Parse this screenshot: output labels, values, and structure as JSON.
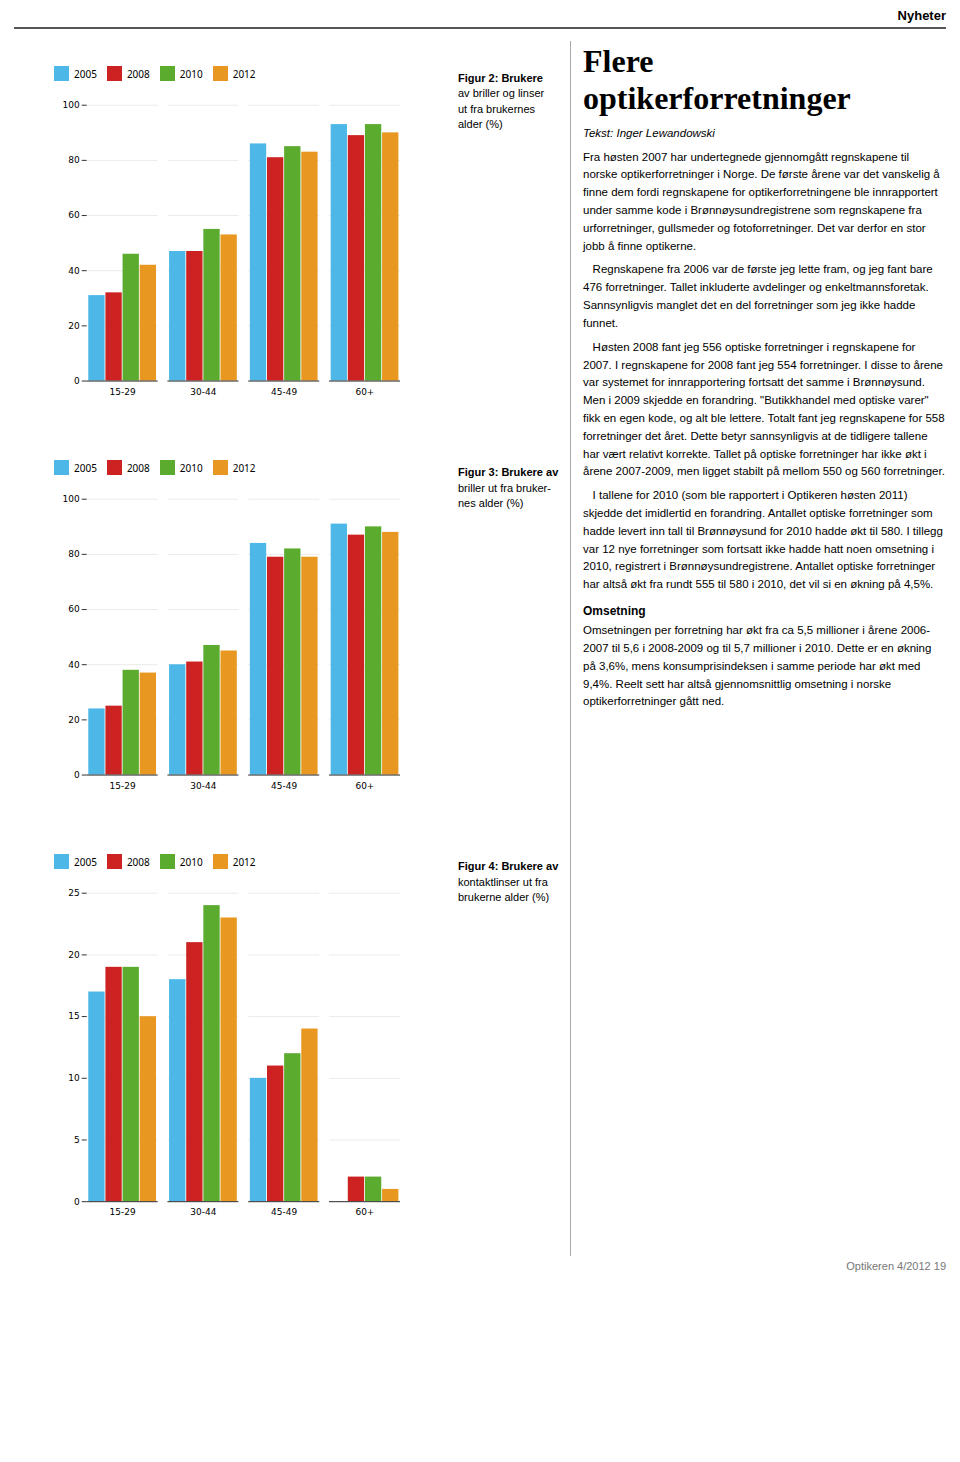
{
  "page": {
    "header": "Nyheter",
    "title": [
      "Flere",
      "optikerforretninger"
    ],
    "author": "Tekst: Inger Lewandowski",
    "body": [
      {
        "paragraph": "Fra høsten 2007 har undertegnede gjennomgått regnskapene til norske optikerforretninger i Norge. De første årene var det vanskelig å finne dem fordi regnskapene for optikerforretningene ble innrapportert under samme kode i Brønnøysundregistrene som regnskapene fra urforretninger, gullsmeder og fotoforretninger. Det var derfor en stor jobb å finne optikerne."
      },
      {
        "paragraph": "   Regnskapene fra 2006 var de første jeg lette fram, og jeg fant bare 476 forretninger. Tallet inkluderte avdelinger og enkeltmannsforetak. Sannsynligvis manglet det en del forretninger som jeg ikke hadde funnet."
      },
      {
        "paragraph": "   Høsten 2008 fant jeg 556 optiske forretninger i regnskapene for 2007. I regnskapene for 2008 fant jeg 554 forretninger. I disse to årene var systemet for innrapportering fortsatt det samme i Brønnøysund. Men i 2009 skjedde en forandring. \"Butikkhandel med optiske varer\" fikk en egen kode, og alt ble lettere. Totalt fant jeg regnskapene for 558 forretninger det året. Dette betyr sannsynligvis at de tidligere tallene har vært relativt korrekte. Tallet på optiske forretninger har ikke økt i årene 2007-2009, men ligget stabilt på mellom 550 og 560 forretninger."
      },
      {
        "paragraph": "   I tallene for 2010 (som ble rapportert i Optikeren høsten 2011) skjedde det imidlertid en forandring. Antallet optiske forretninger som hadde levert inn tall til Brønnøysund for 2010 hadde økt til 580. I tillegg var 12 nye forretninger som fortsatt ikke hadde hatt noen omsetning i 2010, registrert i Brønnøysundregistrene. Antallet optiske forretninger har altså økt fra rundt 555 til 580 i 2010, det vil si en økning på 4,5%."
      },
      {
        "heading": "Omsetning"
      },
      {
        "paragraph": "Omsetningen per forretning har økt fra ca 5,5 millioner i årene 2006-2007 til 5,6 i 2008-2009 og til 5,7 millioner i 2010. Dette er en økning på 3,6%, mens konsumprisindeksen i samme periode har økt med 9,4%. Reelt sett har altså gjennomsnittlig omsetning i norske optikerforretninger gått ned."
      }
    ],
    "footer": "Optikeren 4/2012  19"
  },
  "chart_data": [
    {
      "type": "bar",
      "title": "Figur 2: Brukere\nav briller og linser\nut fra brukernes\nalder (%)",
      "categories": [
        "15-29",
        "30-44",
        "45-49",
        "60+"
      ],
      "series": [
        {
          "name": "2005",
          "color": "#4db8e8",
          "values": [
            31,
            47,
            86,
            93
          ]
        },
        {
          "name": "2008",
          "color": "#cc2222",
          "values": [
            32,
            47,
            81,
            89
          ]
        },
        {
          "name": "2010",
          "color": "#5aab2e",
          "values": [
            46,
            55,
            85,
            93
          ]
        },
        {
          "name": "2012",
          "color": "#e89820",
          "values": [
            42,
            53,
            83,
            90
          ]
        }
      ],
      "ylim": [
        0,
        100
      ],
      "yticks": [
        0,
        20,
        40,
        60,
        80,
        100
      ],
      "grid": true,
      "legend": "top"
    },
    {
      "type": "bar",
      "title": "Figur 3: Brukere av\nbriller ut fra bruker-\nnes alder (%)",
      "categories": [
        "15-29",
        "30-44",
        "45-49",
        "60+"
      ],
      "series": [
        {
          "name": "2005",
          "color": "#4db8e8",
          "values": [
            24,
            40,
            84,
            91
          ]
        },
        {
          "name": "2008",
          "color": "#cc2222",
          "values": [
            25,
            41,
            79,
            87
          ]
        },
        {
          "name": "2010",
          "color": "#5aab2e",
          "values": [
            38,
            47,
            82,
            90
          ]
        },
        {
          "name": "2012",
          "color": "#e89820",
          "values": [
            37,
            45,
            79,
            88
          ]
        }
      ],
      "ylim": [
        0,
        100
      ],
      "yticks": [
        0,
        20,
        40,
        60,
        80,
        100
      ],
      "grid": true,
      "legend": "top"
    },
    {
      "type": "bar",
      "title": "Figur 4: Brukere av\nkontaktlinser ut fra\nbrukerne alder (%)",
      "categories": [
        "15-29",
        "30-44",
        "45-49",
        "60+"
      ],
      "series": [
        {
          "name": "2005",
          "color": "#4db8e8",
          "values": [
            17,
            18,
            10,
            0
          ]
        },
        {
          "name": "2008",
          "color": "#cc2222",
          "values": [
            19,
            21,
            11,
            2
          ]
        },
        {
          "name": "2010",
          "color": "#5aab2e",
          "values": [
            19,
            24,
            12,
            2
          ]
        },
        {
          "name": "2012",
          "color": "#e89820",
          "values": [
            15,
            23,
            14,
            1
          ]
        }
      ],
      "ylim": [
        0,
        25
      ],
      "yticks": [
        0,
        5,
        10,
        15,
        20,
        25
      ],
      "grid": true,
      "legend": "top"
    }
  ]
}
